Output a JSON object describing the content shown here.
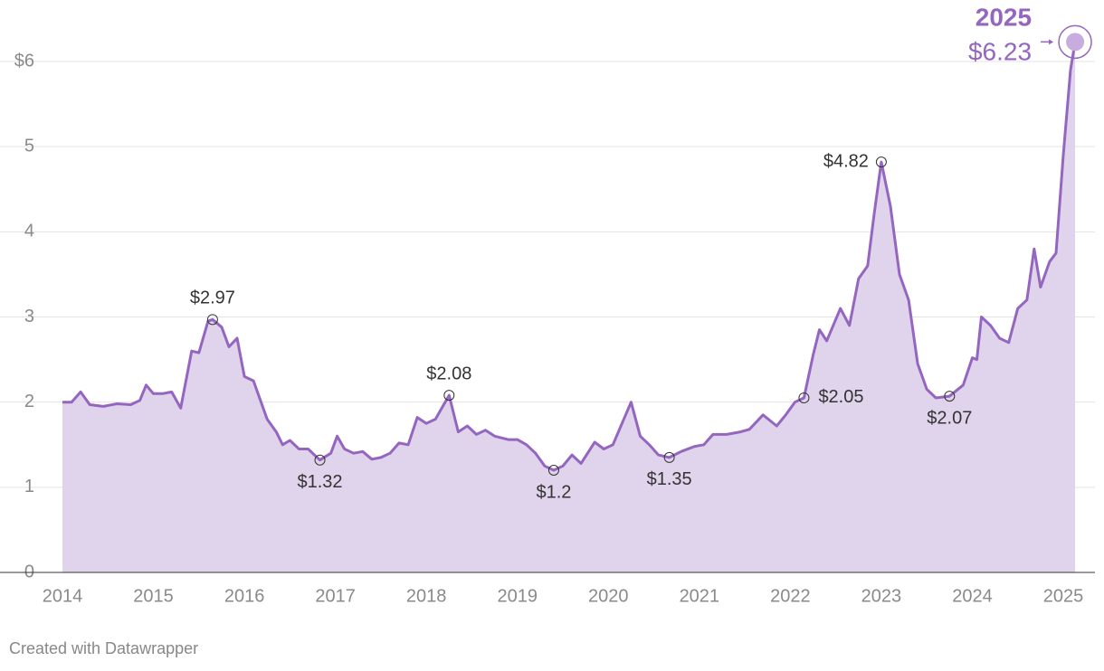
{
  "chart_data": {
    "type": "area",
    "color": "#9466bf",
    "fill": "#e0d3ec",
    "grid": true,
    "source": "Created with Datawrapper",
    "x": [
      2014.0,
      2014.1,
      2014.2,
      2014.3,
      2014.45,
      2014.6,
      2014.75,
      2014.85,
      2014.92,
      2015.0,
      2015.1,
      2015.2,
      2015.3,
      2015.42,
      2015.5,
      2015.6,
      2015.65,
      2015.75,
      2015.83,
      2015.92,
      2016.0,
      2016.1,
      2016.25,
      2016.35,
      2016.42,
      2016.5,
      2016.6,
      2016.7,
      2016.83,
      2016.95,
      2017.02,
      2017.1,
      2017.2,
      2017.3,
      2017.4,
      2017.5,
      2017.6,
      2017.7,
      2017.8,
      2017.9,
      2018.0,
      2018.1,
      2018.25,
      2018.35,
      2018.45,
      2018.55,
      2018.65,
      2018.75,
      2018.9,
      2019.0,
      2019.1,
      2019.2,
      2019.3,
      2019.4,
      2019.5,
      2019.6,
      2019.7,
      2019.85,
      2019.95,
      2020.05,
      2020.25,
      2020.35,
      2020.45,
      2020.55,
      2020.67,
      2020.8,
      2020.95,
      2021.05,
      2021.15,
      2021.3,
      2021.45,
      2021.55,
      2021.7,
      2021.85,
      2021.95,
      2022.05,
      2022.15,
      2022.25,
      2022.32,
      2022.4,
      2022.55,
      2022.65,
      2022.75,
      2022.85,
      2022.92,
      2023.0,
      2023.1,
      2023.2,
      2023.3,
      2023.4,
      2023.5,
      2023.6,
      2023.75,
      2023.9,
      2024.0,
      2024.05,
      2024.1,
      2024.2,
      2024.3,
      2024.4,
      2024.5,
      2024.6,
      2024.68,
      2024.75,
      2024.85,
      2024.92,
      2025.0,
      2025.08,
      2025.13
    ],
    "values": [
      2.0,
      2.0,
      2.12,
      1.97,
      1.95,
      1.98,
      1.97,
      2.02,
      2.2,
      2.1,
      2.1,
      2.12,
      1.93,
      2.6,
      2.58,
      2.95,
      2.97,
      2.88,
      2.65,
      2.75,
      2.3,
      2.25,
      1.8,
      1.65,
      1.5,
      1.55,
      1.45,
      1.45,
      1.32,
      1.4,
      1.6,
      1.45,
      1.4,
      1.42,
      1.33,
      1.35,
      1.4,
      1.52,
      1.5,
      1.82,
      1.75,
      1.8,
      2.08,
      1.65,
      1.72,
      1.62,
      1.67,
      1.6,
      1.56,
      1.56,
      1.5,
      1.4,
      1.25,
      1.2,
      1.25,
      1.38,
      1.28,
      1.53,
      1.45,
      1.5,
      2.0,
      1.6,
      1.5,
      1.38,
      1.35,
      1.42,
      1.48,
      1.5,
      1.62,
      1.62,
      1.65,
      1.68,
      1.85,
      1.72,
      1.85,
      2.0,
      2.05,
      2.55,
      2.85,
      2.72,
      3.1,
      2.9,
      3.45,
      3.6,
      4.2,
      4.82,
      4.3,
      3.5,
      3.2,
      2.45,
      2.15,
      2.05,
      2.07,
      2.2,
      2.52,
      2.5,
      3.0,
      2.9,
      2.75,
      2.7,
      3.1,
      3.2,
      3.8,
      3.35,
      3.65,
      3.75,
      4.9,
      5.9,
      6.23
    ],
    "annotations": [
      {
        "x": 2015.65,
        "y": 2.97,
        "label": "$2.97",
        "placement": "above"
      },
      {
        "x": 2016.83,
        "y": 1.32,
        "label": "$1.32",
        "placement": "below"
      },
      {
        "x": 2018.25,
        "y": 2.08,
        "label": "$2.08",
        "placement": "above"
      },
      {
        "x": 2019.4,
        "y": 1.2,
        "label": "$1.2",
        "placement": "below"
      },
      {
        "x": 2020.67,
        "y": 1.35,
        "label": "$1.35",
        "placement": "below"
      },
      {
        "x": 2022.15,
        "y": 2.05,
        "label": "$2.05",
        "placement": "right"
      },
      {
        "x": 2023.0,
        "y": 4.82,
        "label": "$4.82",
        "placement": "left"
      },
      {
        "x": 2023.75,
        "y": 2.07,
        "label": "$2.07",
        "placement": "below"
      }
    ],
    "highlight": {
      "x": 2025.13,
      "y": 6.23,
      "title": "2025",
      "label": "$6.23"
    },
    "xlim": [
      2014,
      2025
    ],
    "xticks": [
      2014,
      2015,
      2016,
      2017,
      2018,
      2019,
      2020,
      2021,
      2022,
      2023,
      2024,
      2025
    ],
    "ylim": [
      0,
      6
    ],
    "yticks": [
      0,
      1,
      2,
      3,
      4,
      5,
      {
        "value": 6,
        "label": "$6"
      }
    ]
  }
}
